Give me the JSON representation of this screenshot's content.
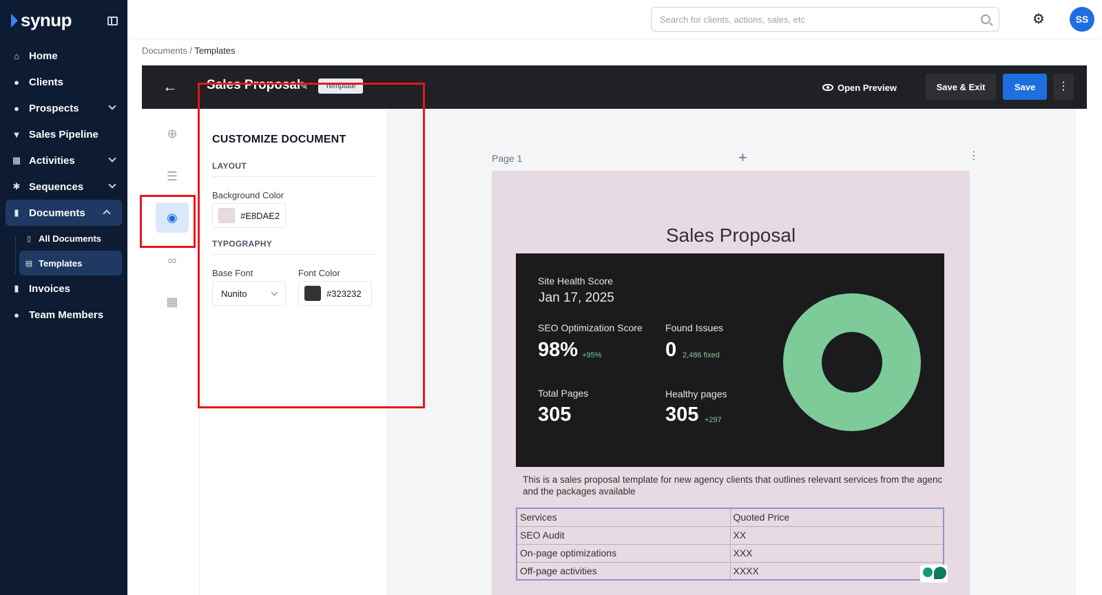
{
  "brand": {
    "name": "synup"
  },
  "sidebar": {
    "items": [
      {
        "label": "Home",
        "icon": "home-icon",
        "glyph": "⌂"
      },
      {
        "label": "Clients",
        "icon": "user-icon",
        "glyph": "●"
      },
      {
        "label": "Prospects",
        "icon": "prospects-icon",
        "glyph": "●"
      },
      {
        "label": "Sales Pipeline",
        "icon": "funnel-icon",
        "glyph": "▼"
      },
      {
        "label": "Activities",
        "icon": "calendar-icon",
        "glyph": "▦"
      },
      {
        "label": "Sequences",
        "icon": "cog-icon",
        "glyph": "✱"
      },
      {
        "label": "Documents",
        "icon": "document-icon",
        "glyph": "▮"
      }
    ],
    "sub_items": [
      {
        "label": "All Documents",
        "icon": "file-icon",
        "glyph": "▯"
      },
      {
        "label": "Templates",
        "icon": "template-icon",
        "glyph": "▤"
      }
    ],
    "bottom_items": [
      {
        "label": "Invoices",
        "icon": "invoice-icon",
        "glyph": "▮"
      },
      {
        "label": "Team Members",
        "icon": "team-icon",
        "glyph": "●"
      }
    ]
  },
  "search": {
    "placeholder": "Search for clients, actions, sales, etc"
  },
  "user": {
    "initials": "SS"
  },
  "breadcrumb": {
    "parent": "Documents",
    "separator": " / ",
    "current": "Templates"
  },
  "editor": {
    "title": "Sales Proposal",
    "badge": "Template",
    "open_preview": "Open Preview",
    "save_exit": "Save & Exit",
    "save": "Save"
  },
  "panel": {
    "heading": "CUSTOMIZE DOCUMENT",
    "layout_title": "LAYOUT",
    "background_color_label": "Background Color",
    "background_color_value": "#E8DAE2",
    "typography_title": "TYPOGRAPHY",
    "base_font_label": "Base Font",
    "base_font_value": "Nunito",
    "font_color_label": "Font Color",
    "font_color_value": "#323232"
  },
  "canvas": {
    "page_label": "Page 1",
    "document_title": "Sales Proposal",
    "dashboard": {
      "title": "Site Health Score",
      "date": "Jan 17, 2025",
      "seo_label": "SEO Optimization Score",
      "seo_value": "98%",
      "seo_delta": "+95%",
      "issues_label": "Found Issues",
      "issues_value": "0",
      "issues_delta": "2,486 fixed",
      "pages_label": "Total Pages",
      "pages_value": "305",
      "healthy_label": "Healthy pages",
      "healthy_value": "305",
      "healthy_delta": "+297",
      "donut_fraction": 1.0
    },
    "description": "This is a sales proposal template for new agency clients that outlines relevant services from the agenc and the packages available",
    "table": {
      "headers": [
        "Services",
        "Quoted Price"
      ],
      "rows": [
        [
          "SEO Audit",
          "XX"
        ],
        [
          "On-page optimizations",
          "XXX"
        ],
        [
          "Off-page activities",
          "XXXX"
        ]
      ]
    }
  },
  "colors": {
    "sidebar_bg": "#0d1b33",
    "accent": "#1d6fe0",
    "page_bg": "#E8DAE2",
    "font_color": "#323232",
    "donut": "#7ecb9a",
    "highlight": "#e8161b"
  }
}
